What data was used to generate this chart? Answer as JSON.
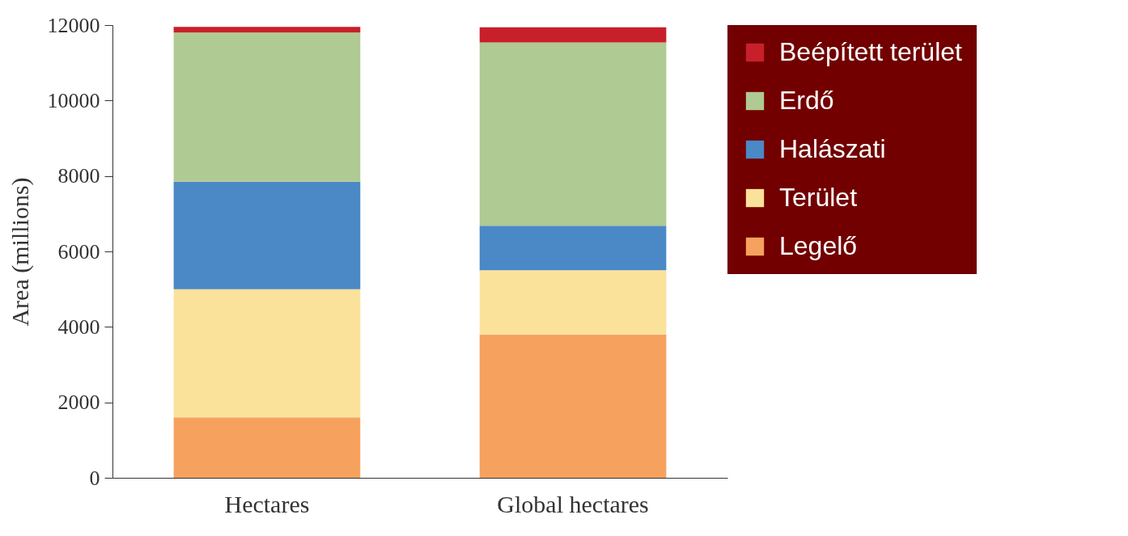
{
  "chart_data": {
    "type": "bar",
    "stacked": true,
    "ylabel": "Area (millions)",
    "categories": [
      "Hectares",
      "Global hectares"
    ],
    "series": [
      {
        "name": "Legelő",
        "color": "#f6a25e",
        "values": [
          1600,
          3800
        ]
      },
      {
        "name": "Terület",
        "color": "#fbe29b",
        "values": [
          3400,
          1700
        ]
      },
      {
        "name": "Halászati",
        "color": "#4a88c6",
        "values": [
          2850,
          1180
        ]
      },
      {
        "name": "Erdő",
        "color": "#afca93",
        "values": [
          3950,
          4860
        ]
      },
      {
        "name": "Beépített terület",
        "color": "#c8202a",
        "values": [
          150,
          400
        ]
      }
    ],
    "ylim": [
      0,
      12000
    ],
    "yticks": [
      0,
      2000,
      4000,
      6000,
      8000,
      10000,
      12000
    ],
    "grid": false,
    "legend": "right"
  }
}
